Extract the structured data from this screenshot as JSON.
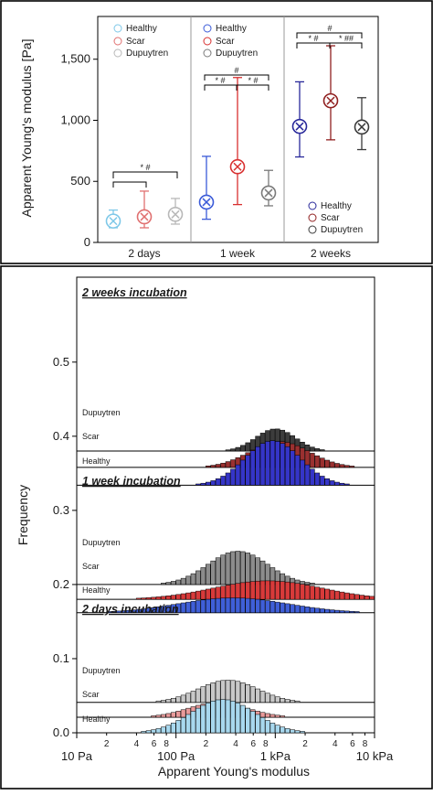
{
  "top_panel": {
    "ylabel": "Apparent Young's modulus [Pa]",
    "yticks": [
      "0",
      "500",
      "1,000",
      "1,500"
    ],
    "categories": [
      "2 days",
      "1 week",
      "2 weeks"
    ],
    "legend_items": [
      "Healthy",
      "Scar",
      "Dupuytren"
    ],
    "sig_2days": "* #",
    "sig_1week_top": "#",
    "sig_1week_left": "* #",
    "sig_1week_right": "* #",
    "sig_2weeks_top": "#",
    "sig_2weeks_left": "* #",
    "sig_2weeks_right": "* ##"
  },
  "bottom_panel": {
    "ylabel": "Frequency",
    "xlabel": "Apparent Young's modulus",
    "yticks": [
      "0.0",
      "0.1",
      "0.2",
      "0.3",
      "0.4",
      "0.5"
    ],
    "xticks_major": [
      "10 Pa",
      "100 Pa",
      "1 kPa",
      "10 kPa"
    ],
    "xticks_minor": [
      "2",
      "4",
      "6",
      "8",
      "2",
      "4",
      "6",
      "8",
      "2",
      "4",
      "6",
      "8"
    ],
    "subpanels": [
      {
        "title": "2 weeks incubation",
        "labels": [
          "Dupuytren",
          "Scar",
          "Healthy"
        ]
      },
      {
        "title": "1 week incubation",
        "labels": [
          "Dupuytren",
          "Scar",
          "Healthy"
        ]
      },
      {
        "title": "2 days incubation",
        "labels": [
          "Dupuytren",
          "Scar",
          "Healthy"
        ]
      }
    ]
  },
  "colors": {
    "healthy_2d": "#7ec8e8",
    "scar_2d": "#e07070",
    "dup_2d": "#b8b8b8",
    "healthy_1w": "#3a5ad8",
    "scar_1w": "#d83030",
    "dup_1w": "#7a7a7a",
    "healthy_2w": "#28289a",
    "scar_2w": "#902020",
    "dup_2w": "#3a3a3a",
    "hist_healthy_2w": "#3535c8",
    "hist_scar_2w": "#9a3030",
    "hist_dup_2w": "#3c3c3c",
    "hist_healthy_1w": "#3f5fd8",
    "hist_scar_1w": "#d83a3a",
    "hist_dup_1w": "#8c8c8c",
    "hist_healthy_2d": "#a8d8ee",
    "hist_scar_2d": "#e89a9a",
    "hist_dup_2d": "#c8c8c8"
  },
  "chart_data": [
    {
      "type": "scatter",
      "ylabel": "Apparent Young's modulus [Pa]",
      "ylim": [
        0,
        1850
      ],
      "categories": [
        "2 days",
        "1 week",
        "2 weeks"
      ],
      "series": [
        {
          "name": "Healthy",
          "values": [
            175,
            330,
            950
          ],
          "err_low": [
            120,
            190,
            700
          ],
          "err_high": [
            265,
            705,
            1315
          ]
        },
        {
          "name": "Scar",
          "values": [
            210,
            620,
            1160
          ],
          "err_low": [
            120,
            310,
            840
          ],
          "err_high": [
            420,
            1350,
            1610
          ]
        },
        {
          "name": "Dupuytren",
          "values": [
            230,
            405,
            945
          ],
          "err_low": [
            150,
            300,
            760
          ],
          "err_high": [
            360,
            590,
            1185
          ]
        }
      ]
    },
    {
      "type": "bar",
      "xlabel": "Apparent Young's modulus",
      "ylabel": "Frequency",
      "xscale": "log",
      "xlim_pa": [
        10,
        10000
      ],
      "ylim": [
        0,
        0.55
      ],
      "panels": [
        {
          "name": "2 weeks incubation",
          "stack": [
            {
              "name": "Healthy",
              "peak_log10_pa": 2.95,
              "width": 0.28,
              "height": 0.06
            },
            {
              "name": "Scar",
              "peak_log10_pa": 3.02,
              "width": 0.3,
              "height": 0.035
            },
            {
              "name": "Dupuytren",
              "peak_log10_pa": 2.98,
              "width": 0.2,
              "height": 0.03
            }
          ]
        },
        {
          "name": "1 week incubation",
          "stack": [
            {
              "name": "Healthy",
              "peak_log10_pa": 2.55,
              "width": 0.55,
              "height": 0.02
            },
            {
              "name": "Scar",
              "peak_log10_pa": 2.9,
              "width": 0.55,
              "height": 0.025
            },
            {
              "name": "Dupuytren",
              "peak_log10_pa": 2.6,
              "width": 0.3,
              "height": 0.045
            }
          ]
        },
        {
          "name": "2 days incubation",
          "stack": [
            {
              "name": "Healthy",
              "peak_log10_pa": 2.45,
              "width": 0.32,
              "height": 0.045
            },
            {
              "name": "Scar",
              "peak_log10_pa": 2.4,
              "width": 0.3,
              "height": 0.02
            },
            {
              "name": "Dupuytren",
              "peak_log10_pa": 2.5,
              "width": 0.3,
              "height": 0.03
            }
          ]
        }
      ]
    }
  ]
}
